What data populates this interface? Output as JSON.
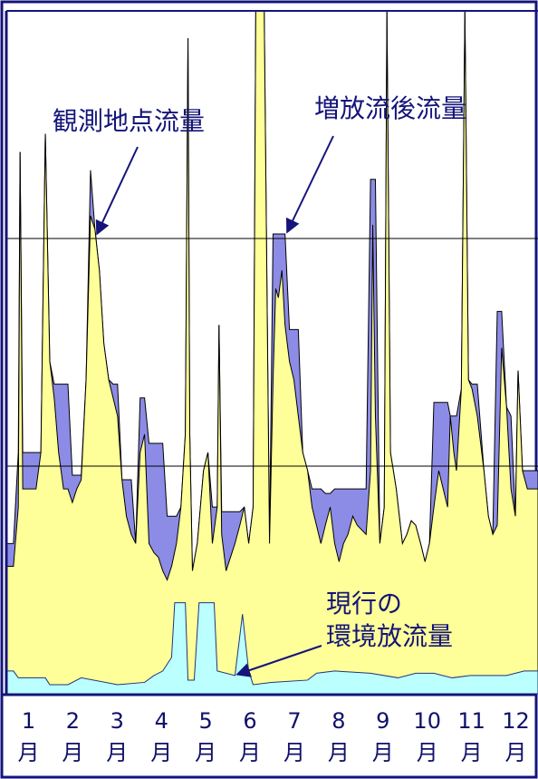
{
  "chart_data": {
    "type": "area",
    "month_label": "月",
    "categories": [
      "1",
      "2",
      "3",
      "4",
      "5",
      "6",
      "7",
      "8",
      "9",
      "10",
      "11",
      "12"
    ],
    "xlim": [
      0,
      12
    ],
    "ylim": [
      0,
      300
    ],
    "yticks": [
      0,
      100,
      200,
      300
    ],
    "grid": true,
    "series": [
      {
        "name": "増放流後流量",
        "color": "#8c8ce6",
        "x": [
          0,
          0.16,
          0.27,
          0.31,
          0.37,
          0.67,
          0.78,
          0.88,
          0.98,
          1.08,
          1.18,
          1.29,
          1.39,
          1.49,
          1.59,
          1.69,
          1.8,
          1.9,
          2.0,
          2.1,
          2.2,
          2.31,
          2.41,
          2.51,
          2.61,
          2.71,
          2.82,
          2.92,
          3.02,
          3.12,
          3.22,
          3.33,
          3.43,
          3.53,
          3.63,
          3.73,
          3.84,
          3.94,
          4.04,
          4.1,
          4.14,
          4.2,
          4.31,
          4.45,
          4.55,
          4.65,
          4.76,
          4.8,
          4.86,
          4.96,
          5.16,
          5.27,
          5.37,
          5.47,
          5.57,
          5.63,
          5.82,
          5.94,
          6.02,
          6.08,
          6.14,
          6.22,
          6.29,
          6.39,
          6.49,
          6.59,
          6.69,
          6.8,
          6.9,
          7.0,
          7.1,
          7.2,
          7.31,
          7.41,
          7.51,
          7.61,
          7.71,
          7.82,
          7.92,
          8.12,
          8.22,
          8.27,
          8.33,
          8.43,
          8.53,
          8.59,
          8.67,
          8.8,
          8.94,
          9.04,
          9.14,
          9.24,
          9.35,
          9.45,
          9.55,
          9.65,
          9.76,
          9.86,
          9.96,
          10.02,
          10.1,
          10.16,
          10.27,
          10.35,
          10.43,
          10.51,
          10.63,
          10.78,
          10.88,
          10.98,
          11.08,
          11.18,
          11.29,
          11.39,
          11.49,
          11.55,
          11.65,
          11.76,
          12
        ],
        "values": [
          66,
          66,
          106,
          238,
          106,
          106,
          106,
          246,
          146,
          136,
          136,
          136,
          136,
          96,
          96,
          96,
          138,
          230,
          204,
          186,
          154,
          138,
          136,
          136,
          94,
          94,
          94,
          66,
          130,
          130,
          110,
          110,
          110,
          110,
          78,
          78,
          78,
          82,
          114,
          288,
          114,
          54,
          66,
          98,
          106,
          82,
          82,
          162,
          80,
          80,
          80,
          80,
          82,
          66,
          82,
          300,
          300,
          66,
          202,
          202,
          202,
          202,
          202,
          160,
          160,
          160,
          106,
          98,
          90,
          90,
          90,
          88,
          88,
          90,
          90,
          90,
          90,
          90,
          90,
          90,
          226,
          226,
          226,
          66,
          82,
          300,
          106,
          90,
          66,
          70,
          76,
          74,
          66,
          58,
          66,
          128,
          128,
          128,
          128,
          122,
          122,
          122,
          134,
          300,
          138,
          136,
          136,
          98,
          78,
          70,
          168,
          168,
          126,
          122,
          78,
          142,
          98,
          98,
          98
        ]
      },
      {
        "name": "観測地点流量",
        "color": "#ffff99",
        "x": [
          0,
          0.16,
          0.27,
          0.31,
          0.37,
          0.67,
          0.78,
          0.88,
          0.98,
          1.08,
          1.18,
          1.29,
          1.39,
          1.49,
          1.59,
          1.69,
          1.8,
          1.9,
          2.0,
          2.1,
          2.2,
          2.31,
          2.41,
          2.51,
          2.61,
          2.71,
          2.82,
          2.92,
          3.02,
          3.12,
          3.22,
          3.33,
          3.43,
          3.53,
          3.63,
          3.73,
          3.84,
          3.94,
          4.04,
          4.1,
          4.14,
          4.2,
          4.31,
          4.45,
          4.55,
          4.65,
          4.76,
          4.8,
          4.86,
          4.96,
          5.16,
          5.27,
          5.37,
          5.47,
          5.57,
          5.63,
          5.82,
          5.94,
          6.02,
          6.08,
          6.14,
          6.22,
          6.29,
          6.39,
          6.49,
          6.59,
          6.69,
          6.8,
          6.9,
          7.0,
          7.1,
          7.2,
          7.31,
          7.41,
          7.51,
          7.61,
          7.71,
          7.82,
          7.92,
          8.12,
          8.22,
          8.27,
          8.33,
          8.43,
          8.53,
          8.59,
          8.67,
          8.8,
          8.94,
          9.04,
          9.14,
          9.24,
          9.35,
          9.45,
          9.55,
          9.65,
          9.76,
          9.86,
          9.96,
          10.02,
          10.1,
          10.16,
          10.27,
          10.35,
          10.43,
          10.51,
          10.63,
          10.78,
          10.88,
          10.98,
          11.08,
          11.18,
          11.29,
          11.39,
          11.49,
          11.55,
          11.65,
          11.76,
          12
        ],
        "values": [
          56,
          56,
          82,
          238,
          90,
          90,
          106,
          246,
          146,
          130,
          106,
          90,
          90,
          84,
          90,
          94,
          138,
          210,
          204,
          186,
          154,
          138,
          130,
          122,
          94,
          78,
          70,
          66,
          106,
          114,
          66,
          62,
          60,
          54,
          50,
          56,
          66,
          82,
          114,
          288,
          114,
          54,
          66,
          98,
          106,
          66,
          82,
          162,
          70,
          54,
          66,
          74,
          82,
          66,
          82,
          300,
          300,
          66,
          138,
          178,
          174,
          186,
          162,
          146,
          138,
          122,
          106,
          98,
          82,
          74,
          66,
          74,
          82,
          66,
          58,
          66,
          70,
          78,
          74,
          70,
          98,
          206,
          122,
          66,
          82,
          300,
          106,
          90,
          66,
          70,
          76,
          74,
          66,
          58,
          66,
          82,
          98,
          90,
          82,
          122,
          106,
          98,
          134,
          300,
          138,
          134,
          122,
          98,
          78,
          70,
          74,
          152,
          126,
          90,
          78,
          142,
          98,
          90,
          90
        ]
      },
      {
        "name": "現行の\n環境放流量",
        "color": "#bbffff",
        "x": [
          0,
          0.16,
          0.27,
          0.88,
          0.98,
          1.39,
          1.69,
          2.51,
          3.12,
          3.33,
          3.53,
          3.73,
          3.8,
          4.04,
          4.1,
          4.24,
          4.35,
          4.69,
          4.76,
          5.16,
          5.33,
          5.47,
          5.57,
          5.98,
          6.8,
          7.0,
          7.41,
          8.22,
          8.84,
          9.24,
          9.65,
          10.06,
          10.47,
          11.29,
          11.69,
          12
        ],
        "values": [
          10,
          10,
          7,
          7,
          4,
          4,
          7,
          4,
          5,
          8,
          10,
          16,
          40,
          40,
          6,
          6,
          40,
          40,
          10,
          8,
          35,
          10,
          4,
          5,
          6,
          9,
          10,
          9,
          7,
          9,
          9,
          7,
          8,
          8,
          10,
          10
        ]
      }
    ]
  }
}
